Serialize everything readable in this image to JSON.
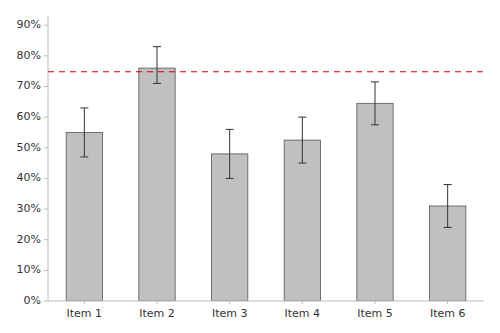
{
  "chart_data": {
    "type": "bar",
    "categories": [
      "Item 1",
      "Item 2",
      "Item 3",
      "Item 4",
      "Item 5",
      "Item 6"
    ],
    "values": [
      0.55,
      0.76,
      0.48,
      0.525,
      0.645,
      0.31
    ],
    "errors_upper": [
      0.08,
      0.07,
      0.08,
      0.075,
      0.07,
      0.07
    ],
    "errors_lower": [
      0.08,
      0.05,
      0.08,
      0.075,
      0.07,
      0.07
    ],
    "color": "#C0C0C0",
    "reference_line": {
      "value": 0.748,
      "color": "#CC0000"
    },
    "ylim": [
      0,
      0.93
    ],
    "yticks": [
      {
        "value": 0.0,
        "label": "0%"
      },
      {
        "value": 0.1,
        "label": "10%"
      },
      {
        "value": 0.2,
        "label": "20%"
      },
      {
        "value": 0.3,
        "label": "30%"
      },
      {
        "value": 0.4,
        "label": "40%"
      },
      {
        "value": 0.5,
        "label": "50%"
      },
      {
        "value": 0.6,
        "label": "60%"
      },
      {
        "value": 0.7,
        "label": "70%"
      },
      {
        "value": 0.8,
        "label": "80%"
      },
      {
        "value": 0.9,
        "label": "90%"
      }
    ],
    "grid": false
  }
}
